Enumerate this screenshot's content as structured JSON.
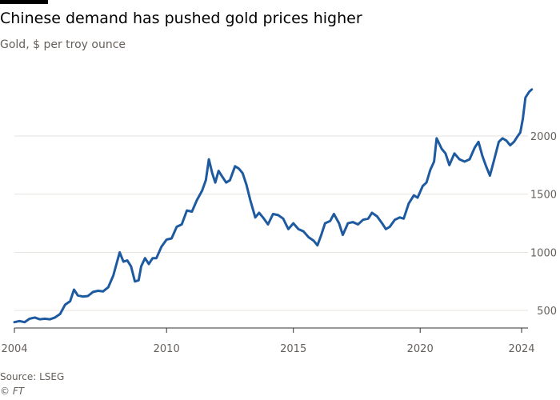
{
  "header": {
    "title": "Chinese demand has pushed gold prices higher",
    "subtitle": "Gold, $ per troy ounce"
  },
  "footer": {
    "source": "Source: LSEG",
    "copyright": "© FT"
  },
  "colors": {
    "line": "#1e5aa0",
    "grid": "#e6e2de",
    "axis": "#33302e",
    "tick_text": "#66605c",
    "brand_bar": "#000000"
  },
  "chart_data": {
    "type": "line",
    "title": "Chinese demand has pushed gold prices higher",
    "subtitle": "Gold, $ per troy ounce",
    "xlabel": "",
    "ylabel": "",
    "x_ticks": [
      2004,
      2010,
      2015,
      2020,
      2024
    ],
    "y_ticks": [
      500,
      1000,
      1500,
      2000
    ],
    "xlim": [
      2004,
      2024
    ],
    "ylim": [
      350,
      2550
    ],
    "grid": "horizontal",
    "y_axis_side": "right",
    "series": [
      {
        "points": [
          [
            2004.0,
            400
          ],
          [
            2004.2,
            410
          ],
          [
            2004.4,
            400
          ],
          [
            2004.6,
            430
          ],
          [
            2004.8,
            440
          ],
          [
            2005.0,
            425
          ],
          [
            2005.2,
            430
          ],
          [
            2005.4,
            425
          ],
          [
            2005.6,
            440
          ],
          [
            2005.8,
            470
          ],
          [
            2006.0,
            550
          ],
          [
            2006.2,
            580
          ],
          [
            2006.35,
            680
          ],
          [
            2006.5,
            630
          ],
          [
            2006.7,
            620
          ],
          [
            2006.9,
            625
          ],
          [
            2007.1,
            660
          ],
          [
            2007.3,
            670
          ],
          [
            2007.5,
            665
          ],
          [
            2007.7,
            700
          ],
          [
            2007.9,
            800
          ],
          [
            2008.0,
            880
          ],
          [
            2008.15,
            1000
          ],
          [
            2008.3,
            920
          ],
          [
            2008.45,
            930
          ],
          [
            2008.6,
            880
          ],
          [
            2008.75,
            750
          ],
          [
            2008.9,
            760
          ],
          [
            2009.0,
            880
          ],
          [
            2009.15,
            950
          ],
          [
            2009.3,
            900
          ],
          [
            2009.45,
            950
          ],
          [
            2009.6,
            950
          ],
          [
            2009.8,
            1050
          ],
          [
            2010.0,
            1110
          ],
          [
            2010.2,
            1120
          ],
          [
            2010.4,
            1220
          ],
          [
            2010.6,
            1240
          ],
          [
            2010.8,
            1360
          ],
          [
            2011.0,
            1350
          ],
          [
            2011.2,
            1450
          ],
          [
            2011.4,
            1530
          ],
          [
            2011.55,
            1620
          ],
          [
            2011.67,
            1800
          ],
          [
            2011.8,
            1680
          ],
          [
            2011.92,
            1600
          ],
          [
            2012.05,
            1700
          ],
          [
            2012.2,
            1650
          ],
          [
            2012.35,
            1600
          ],
          [
            2012.5,
            1620
          ],
          [
            2012.7,
            1740
          ],
          [
            2012.85,
            1720
          ],
          [
            2013.0,
            1680
          ],
          [
            2013.15,
            1580
          ],
          [
            2013.3,
            1450
          ],
          [
            2013.5,
            1300
          ],
          [
            2013.65,
            1340
          ],
          [
            2013.8,
            1300
          ],
          [
            2014.0,
            1240
          ],
          [
            2014.2,
            1330
          ],
          [
            2014.4,
            1320
          ],
          [
            2014.6,
            1290
          ],
          [
            2014.8,
            1200
          ],
          [
            2015.0,
            1250
          ],
          [
            2015.2,
            1200
          ],
          [
            2015.4,
            1180
          ],
          [
            2015.6,
            1130
          ],
          [
            2015.8,
            1100
          ],
          [
            2015.95,
            1060
          ],
          [
            2016.1,
            1150
          ],
          [
            2016.25,
            1250
          ],
          [
            2016.45,
            1270
          ],
          [
            2016.6,
            1330
          ],
          [
            2016.8,
            1250
          ],
          [
            2016.95,
            1150
          ],
          [
            2017.15,
            1250
          ],
          [
            2017.35,
            1260
          ],
          [
            2017.55,
            1240
          ],
          [
            2017.75,
            1280
          ],
          [
            2017.95,
            1290
          ],
          [
            2018.1,
            1340
          ],
          [
            2018.3,
            1310
          ],
          [
            2018.5,
            1250
          ],
          [
            2018.65,
            1200
          ],
          [
            2018.8,
            1220
          ],
          [
            2019.0,
            1280
          ],
          [
            2019.2,
            1300
          ],
          [
            2019.35,
            1290
          ],
          [
            2019.55,
            1420
          ],
          [
            2019.75,
            1490
          ],
          [
            2019.9,
            1470
          ],
          [
            2020.1,
            1570
          ],
          [
            2020.25,
            1600
          ],
          [
            2020.4,
            1710
          ],
          [
            2020.55,
            1780
          ],
          [
            2020.65,
            1980
          ],
          [
            2020.85,
            1890
          ],
          [
            2021.0,
            1850
          ],
          [
            2021.15,
            1750
          ],
          [
            2021.35,
            1850
          ],
          [
            2021.55,
            1800
          ],
          [
            2021.75,
            1780
          ],
          [
            2021.95,
            1800
          ],
          [
            2022.15,
            1900
          ],
          [
            2022.3,
            1950
          ],
          [
            2022.45,
            1830
          ],
          [
            2022.6,
            1740
          ],
          [
            2022.75,
            1660
          ],
          [
            2022.9,
            1780
          ],
          [
            2023.1,
            1950
          ],
          [
            2023.25,
            1980
          ],
          [
            2023.4,
            1960
          ],
          [
            2023.55,
            1920
          ],
          [
            2023.7,
            1950
          ],
          [
            2023.85,
            2000
          ],
          [
            2023.95,
            2030
          ],
          [
            2024.05,
            2150
          ],
          [
            2024.15,
            2330
          ],
          [
            2024.3,
            2380
          ],
          [
            2024.4,
            2400
          ]
        ]
      }
    ]
  }
}
